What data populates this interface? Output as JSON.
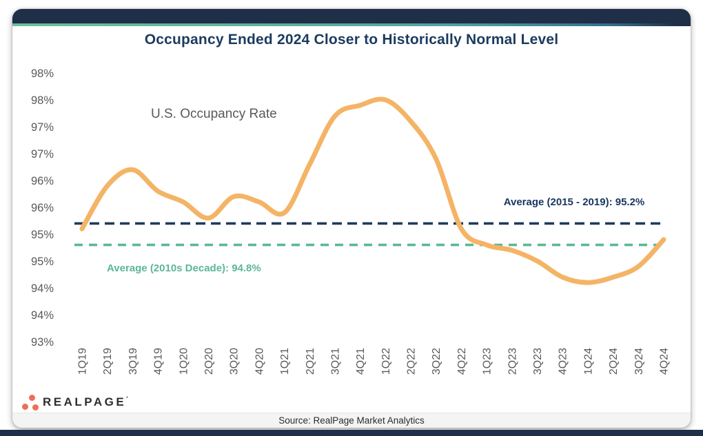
{
  "page": {
    "title": "Occupancy Ended 2024 Closer to Historically Normal Level",
    "source": "Source: RealPage Market Analytics",
    "logo_text": "REALPAGE",
    "logo_tm_mark": "'",
    "colors": {
      "header_navy": "#1E2F47",
      "title_navy": "#1C3A5F",
      "line_orange": "#F4B466",
      "ref_navy": "#1F3A5A",
      "ref_teal": "#5CB795",
      "axis_gray": "#595959",
      "logo_coral": "#E87157"
    }
  },
  "chart_data": {
    "type": "line",
    "title": "Occupancy Ended 2024 Closer to Historically Normal Level",
    "series_label": "U.S. Occupancy Rate",
    "categories": [
      "1Q19",
      "2Q19",
      "3Q19",
      "4Q19",
      "1Q20",
      "2Q20",
      "3Q20",
      "4Q20",
      "1Q21",
      "2Q21",
      "3Q21",
      "4Q21",
      "1Q22",
      "2Q22",
      "3Q22",
      "4Q22",
      "1Q23",
      "2Q23",
      "3Q23",
      "4Q23",
      "1Q24",
      "2Q24",
      "3Q24",
      "4Q24"
    ],
    "values": [
      95.1,
      95.9,
      96.2,
      95.8,
      95.6,
      95.3,
      95.7,
      95.6,
      95.4,
      96.3,
      97.2,
      97.4,
      97.5,
      97.1,
      96.4,
      95.1,
      94.8,
      94.7,
      94.5,
      94.2,
      94.1,
      94.2,
      94.4,
      94.9
    ],
    "ylim": [
      93,
      98
    ],
    "ytick_step": 0.5,
    "ytick_labels_top_to_bottom": [
      "98%",
      "98%",
      "97%",
      "97%",
      "96%",
      "96%",
      "95%",
      "95%",
      "94%",
      "94%",
      "93%"
    ],
    "xlabel": "",
    "ylabel": "",
    "grid": false,
    "legend_position": "none",
    "line_color": "#F4B466",
    "reference_lines": [
      {
        "label": "Average (2015 - 2019): 95.2%",
        "value": 95.2,
        "color": "#1F3A5A",
        "style": "dashed"
      },
      {
        "label": "Average (2010s Decade): 94.8%",
        "value": 94.8,
        "color": "#5CB795",
        "style": "dashed"
      }
    ]
  }
}
